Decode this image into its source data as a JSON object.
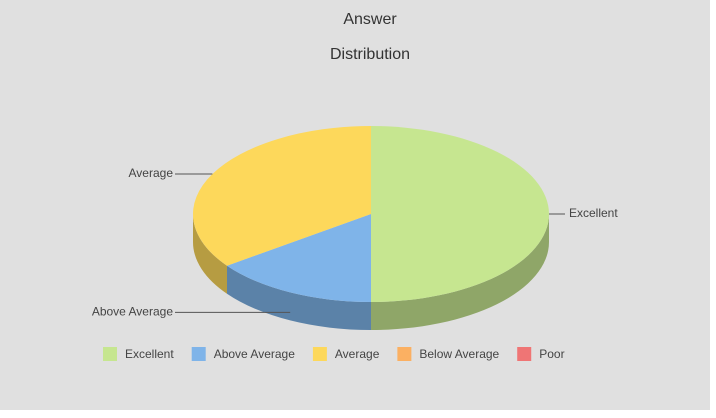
{
  "chart_data": {
    "type": "pie3d",
    "title": [
      "Answer",
      "Distribution"
    ],
    "categories": [
      "Excellent",
      "Above Average",
      "Average",
      "Below Average",
      "Poor"
    ],
    "values": [
      50,
      15,
      35,
      0,
      0
    ],
    "colors": [
      "#c6e690",
      "#7fb4e9",
      "#fdd85b",
      "#fbb062",
      "#ef7575"
    ],
    "legend": "bottom"
  }
}
